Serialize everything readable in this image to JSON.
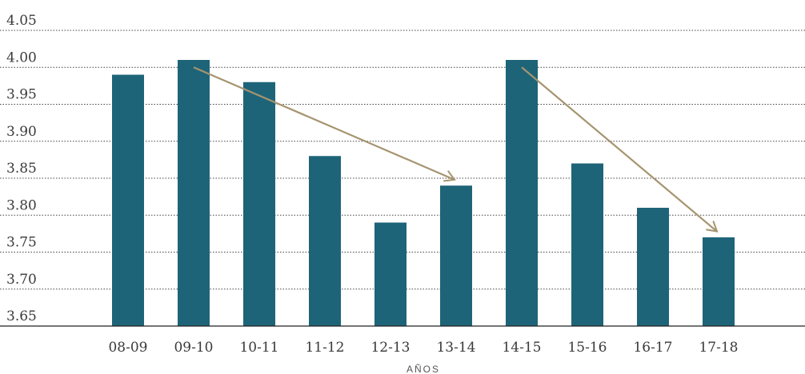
{
  "chart_data": {
    "type": "bar",
    "categories": [
      "08-09",
      "09-10",
      "10-11",
      "11-12",
      "12-13",
      "13-14",
      "14-15",
      "15-16",
      "16-17",
      "17-18"
    ],
    "values": [
      3.99,
      4.01,
      3.98,
      3.88,
      3.79,
      3.84,
      4.01,
      3.87,
      3.81,
      3.77
    ],
    "xlabel": "AÑOS",
    "ylabel": "",
    "ylim": [
      3.65,
      4.05
    ],
    "yticks": [
      "4.05",
      "4.00",
      "3.95",
      "3.90",
      "3.85",
      "3.80",
      "3.75",
      "3.70",
      "3.65"
    ],
    "grid": true,
    "colors": {
      "bar": "#1e6478",
      "arrow": "#a5946f"
    },
    "annotations": [
      {
        "type": "arrow",
        "from": {
          "category": "09-10",
          "value": 4.0
        },
        "to": {
          "category": "13-14",
          "value": 3.848
        }
      },
      {
        "type": "arrow",
        "from": {
          "category": "14-15",
          "value": 4.0
        },
        "to": {
          "category": "17-18",
          "value": 3.778
        }
      }
    ]
  }
}
